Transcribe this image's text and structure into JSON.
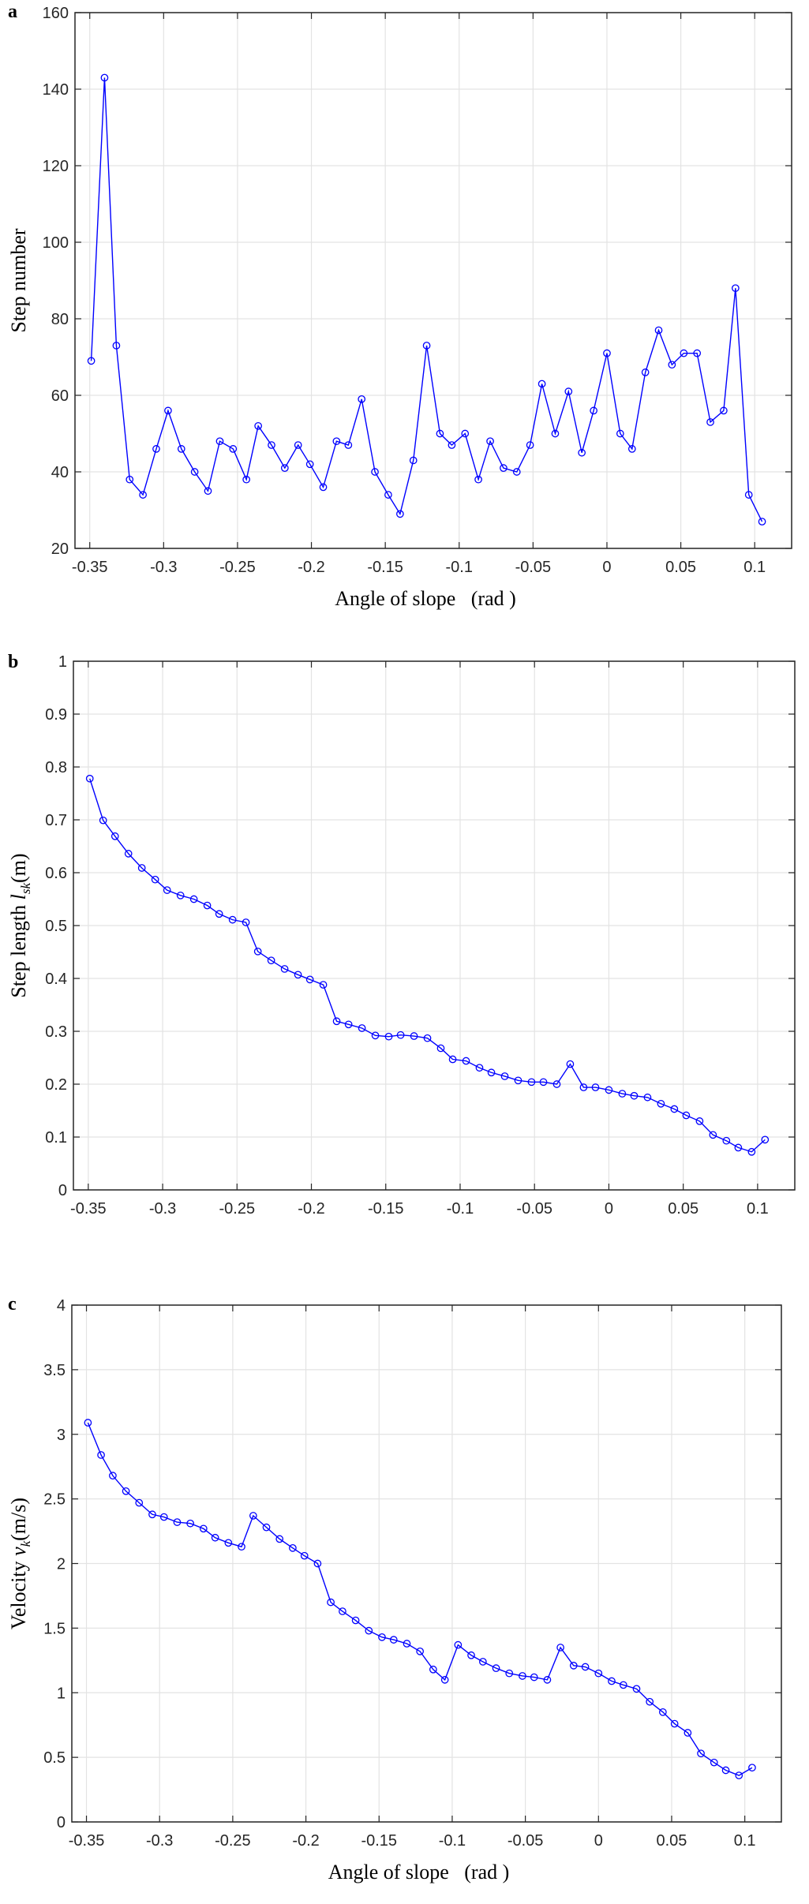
{
  "chart_data": [
    {
      "panel_label": "a",
      "type": "line",
      "title": "",
      "xlabel": "Angle of slope   (rad )",
      "ylabel": "Step number",
      "xlim": [
        -0.36,
        0.125
      ],
      "ylim": [
        20,
        160
      ],
      "xticks": [
        -0.35,
        -0.3,
        -0.25,
        -0.2,
        -0.15,
        -0.1,
        -0.05,
        0,
        0.05,
        0.1
      ],
      "xtick_labels": [
        "-0.35",
        "-0.3",
        "-0.25",
        "-0.2",
        "-0.15",
        "-0.1",
        "-0.05",
        "0",
        "0.05",
        "0.1"
      ],
      "yticks": [
        20,
        40,
        60,
        80,
        100,
        120,
        140,
        160
      ],
      "ytick_labels": [
        "20",
        "40",
        "60",
        "80",
        "100",
        "120",
        "140",
        "160"
      ],
      "grid": true,
      "marker": "circle",
      "color": "#0000ff",
      "x": [
        -0.349,
        -0.34,
        -0.332,
        -0.323,
        -0.314,
        -0.305,
        -0.297,
        -0.288,
        -0.279,
        -0.27,
        -0.262,
        -0.253,
        -0.244,
        -0.236,
        -0.227,
        -0.218,
        -0.209,
        -0.201,
        -0.192,
        -0.183,
        -0.175,
        -0.166,
        -0.157,
        -0.148,
        -0.14,
        -0.131,
        -0.122,
        -0.113,
        -0.105,
        -0.096,
        -0.087,
        -0.079,
        -0.07,
        -0.061,
        -0.052,
        -0.044,
        -0.035,
        -0.026,
        -0.017,
        -0.009,
        0.0,
        0.009,
        0.017,
        0.026,
        0.035,
        0.044,
        0.052,
        0.061,
        0.07,
        0.079,
        0.087,
        0.096,
        0.105
      ],
      "values": [
        69,
        143,
        73,
        38,
        34,
        46,
        56,
        46,
        40,
        35,
        48,
        46,
        38,
        52,
        47,
        41,
        47,
        42,
        36,
        48,
        47,
        59,
        40,
        34,
        29,
        43,
        73,
        50,
        47,
        50,
        38,
        48,
        41,
        40,
        47,
        63,
        50,
        61,
        45,
        56,
        71,
        50,
        46,
        66,
        77,
        68,
        71,
        71,
        53,
        56,
        88,
        34,
        27
      ]
    },
    {
      "panel_label": "b",
      "type": "line",
      "title": "",
      "xlabel": "Angle of slope   (rad )",
      "ylabel": "Step length l_sk (m)",
      "ylabel_main": "Step length ",
      "ylabel_var": "l",
      "ylabel_sub": "sk",
      "ylabel_unit": "(m)",
      "xlim": [
        -0.36,
        0.125
      ],
      "ylim": [
        0,
        1
      ],
      "xticks": [
        -0.35,
        -0.3,
        -0.25,
        -0.2,
        -0.15,
        -0.1,
        -0.05,
        0,
        0.05,
        0.1
      ],
      "xtick_labels": [
        "-0.35",
        "-0.3",
        "-0.25",
        "-0.2",
        "-0.15",
        "-0.1",
        "-0.05",
        "0",
        "0.05",
        "0.1"
      ],
      "yticks": [
        0,
        0.1,
        0.2,
        0.3,
        0.4,
        0.5,
        0.6,
        0.7,
        0.8,
        0.9,
        1
      ],
      "ytick_labels": [
        "0",
        "0.1",
        "0.2",
        "0.3",
        "0.4",
        "0.5",
        "0.6",
        "0.7",
        "0.8",
        "0.9",
        "1"
      ],
      "grid": true,
      "marker": "circle",
      "color": "#0000ff",
      "x": [
        -0.349,
        -0.34,
        -0.332,
        -0.323,
        -0.314,
        -0.305,
        -0.297,
        -0.288,
        -0.279,
        -0.27,
        -0.262,
        -0.253,
        -0.244,
        -0.236,
        -0.227,
        -0.218,
        -0.209,
        -0.201,
        -0.192,
        -0.183,
        -0.175,
        -0.166,
        -0.157,
        -0.148,
        -0.14,
        -0.131,
        -0.122,
        -0.113,
        -0.105,
        -0.096,
        -0.087,
        -0.079,
        -0.07,
        -0.061,
        -0.052,
        -0.044,
        -0.035,
        -0.026,
        -0.017,
        -0.009,
        0.0,
        0.009,
        0.017,
        0.026,
        0.035,
        0.044,
        0.052,
        0.061,
        0.07,
        0.079,
        0.087,
        0.096,
        0.105
      ],
      "values": [
        0.778,
        0.699,
        0.669,
        0.636,
        0.609,
        0.587,
        0.567,
        0.557,
        0.55,
        0.538,
        0.522,
        0.511,
        0.506,
        0.451,
        0.434,
        0.418,
        0.407,
        0.398,
        0.388,
        0.319,
        0.313,
        0.306,
        0.292,
        0.29,
        0.293,
        0.291,
        0.287,
        0.268,
        0.247,
        0.244,
        0.231,
        0.222,
        0.215,
        0.207,
        0.204,
        0.204,
        0.2,
        0.238,
        0.194,
        0.194,
        0.189,
        0.182,
        0.178,
        0.175,
        0.163,
        0.153,
        0.141,
        0.13,
        0.104,
        0.093,
        0.08,
        0.072,
        0.095
      ]
    },
    {
      "panel_label": "c",
      "type": "line",
      "title": "",
      "xlabel": "Angle of slope   (rad )",
      "ylabel": "Velocity v_k (m/s)",
      "ylabel_main": "Velocity ",
      "ylabel_var": "v",
      "ylabel_sub": "k",
      "ylabel_unit": "(m/s)",
      "xlim": [
        -0.36,
        0.125
      ],
      "ylim": [
        0,
        4
      ],
      "xticks": [
        -0.35,
        -0.3,
        -0.25,
        -0.2,
        -0.15,
        -0.1,
        -0.05,
        0,
        0.05,
        0.1
      ],
      "xtick_labels": [
        "-0.35",
        "-0.3",
        "-0.25",
        "-0.2",
        "-0.15",
        "-0.1",
        "-0.05",
        "0",
        "0.05",
        "0.1"
      ],
      "yticks": [
        0,
        0.5,
        1,
        1.5,
        2,
        2.5,
        3,
        3.5,
        4
      ],
      "ytick_labels": [
        "0",
        "0.5",
        "1",
        "1.5",
        "2",
        "2.5",
        "3",
        "3.5",
        "4"
      ],
      "grid": true,
      "marker": "circle",
      "color": "#0000ff",
      "x": [
        -0.349,
        -0.34,
        -0.332,
        -0.323,
        -0.314,
        -0.305,
        -0.297,
        -0.288,
        -0.279,
        -0.27,
        -0.262,
        -0.253,
        -0.244,
        -0.236,
        -0.227,
        -0.218,
        -0.209,
        -0.201,
        -0.192,
        -0.183,
        -0.175,
        -0.166,
        -0.157,
        -0.148,
        -0.14,
        -0.131,
        -0.122,
        -0.113,
        -0.105,
        -0.096,
        -0.087,
        -0.079,
        -0.07,
        -0.061,
        -0.052,
        -0.044,
        -0.035,
        -0.026,
        -0.017,
        -0.009,
        0.0,
        0.009,
        0.017,
        0.026,
        0.035,
        0.044,
        0.052,
        0.061,
        0.07,
        0.079,
        0.087,
        0.096,
        0.105
      ],
      "values": [
        3.09,
        2.84,
        2.68,
        2.56,
        2.47,
        2.38,
        2.36,
        2.32,
        2.31,
        2.27,
        2.2,
        2.16,
        2.13,
        2.37,
        2.28,
        2.19,
        2.12,
        2.06,
        2.0,
        1.7,
        1.63,
        1.56,
        1.48,
        1.43,
        1.41,
        1.38,
        1.32,
        1.18,
        1.1,
        1.37,
        1.29,
        1.24,
        1.19,
        1.15,
        1.13,
        1.12,
        1.1,
        1.35,
        1.21,
        1.2,
        1.15,
        1.09,
        1.06,
        1.03,
        0.93,
        0.85,
        0.76,
        0.69,
        0.53,
        0.46,
        0.4,
        0.36,
        0.42
      ]
    }
  ]
}
